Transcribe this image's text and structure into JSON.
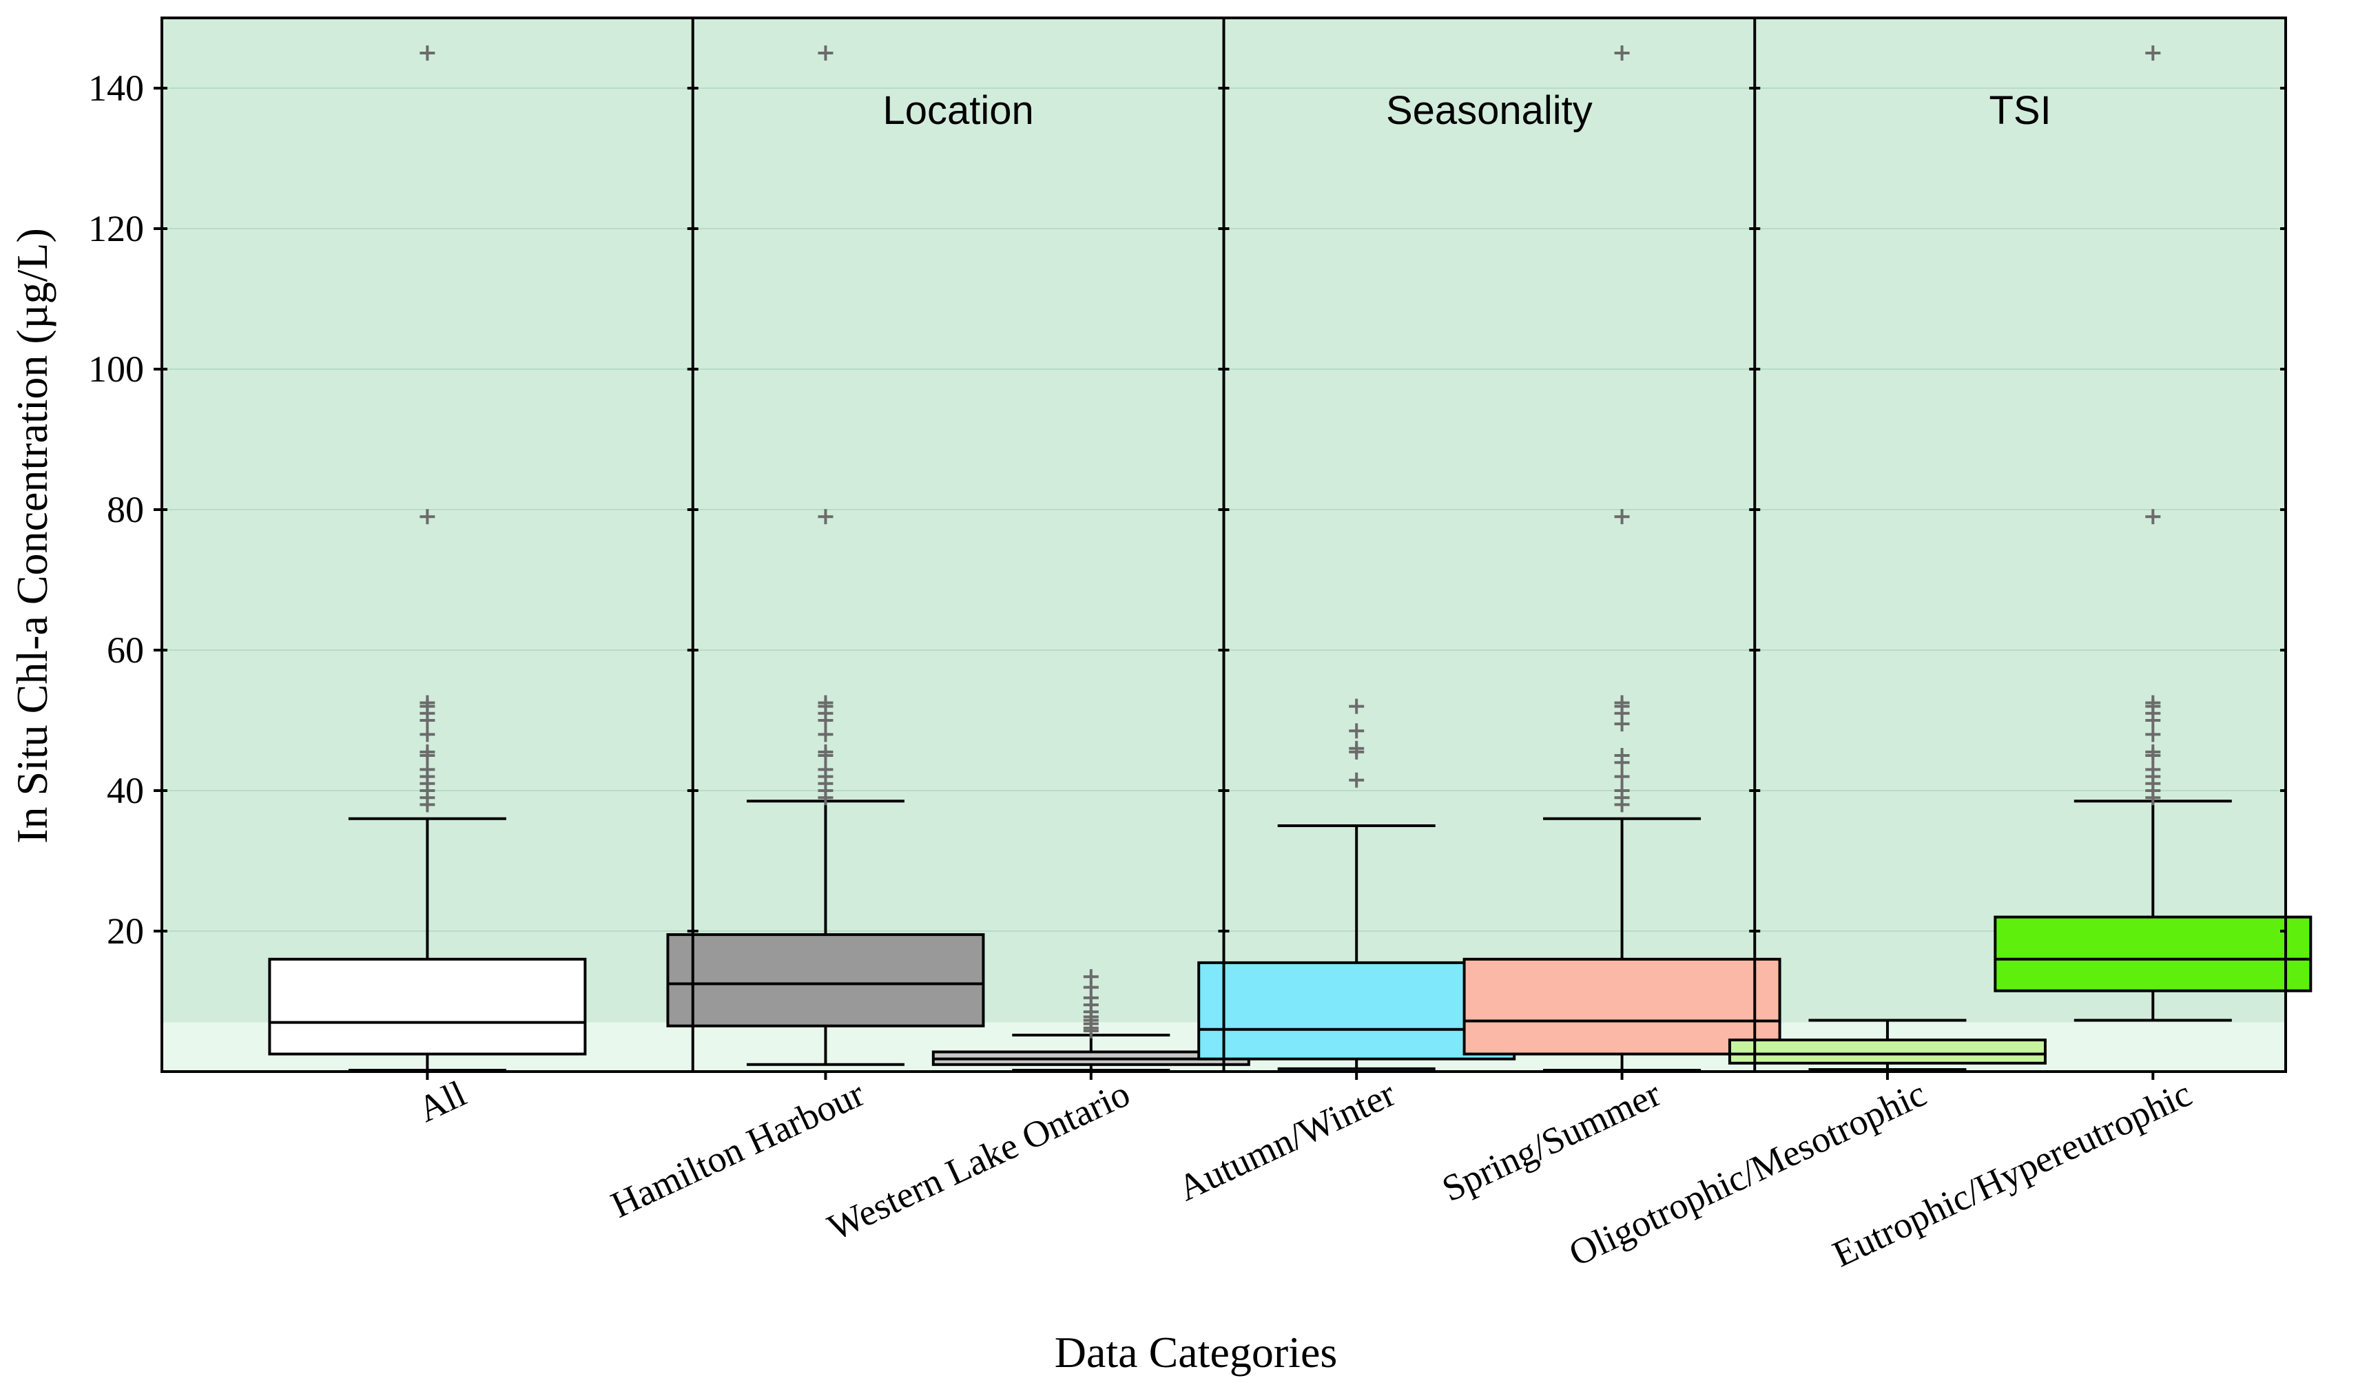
{
  "chart_data": {
    "type": "boxplot",
    "xlabel": "Data Categories",
    "ylabel": "In Situ Chl-a Concentration (µg/L)",
    "ylim": [
      0,
      150
    ],
    "yticks": [
      20,
      40,
      60,
      80,
      100,
      120,
      140
    ],
    "threshold": 7,
    "colors": {
      "background_above_threshold": "#d2ecdc",
      "background_below_threshold": "#e9f8ed",
      "gridline": "#b8dcc4",
      "outlier": "#6b6b6b"
    },
    "panels": [
      {
        "title": "",
        "categories": [
          "All"
        ]
      },
      {
        "title": "Location",
        "categories": [
          "Hamilton Harbour",
          "Western Lake Ontario"
        ]
      },
      {
        "title": "Seasonality",
        "categories": [
          "Autumn/Winter",
          "Spring/Summer"
        ]
      },
      {
        "title": "TSI",
        "categories": [
          "Oligotrophic/Mesotrophic",
          "Eutrophic/Hypereutrophic"
        ]
      }
    ],
    "boxes": [
      {
        "category": "All",
        "whisker_low": 0.2,
        "q1": 2.5,
        "median": 7.0,
        "q3": 16.0,
        "whisker_high": 36.0,
        "color": "#ffffff",
        "outliers": [
          38,
          39,
          40,
          41,
          42,
          43,
          45,
          45.5,
          48,
          50,
          51,
          52,
          52.5,
          79,
          145
        ]
      },
      {
        "category": "Hamilton Harbour",
        "whisker_low": 1.0,
        "q1": 6.5,
        "median": 12.5,
        "q3": 19.5,
        "whisker_high": 38.5,
        "color": "#999999",
        "outliers": [
          39,
          40,
          41,
          42,
          43,
          45,
          45.5,
          48,
          50,
          51,
          52,
          52.5,
          79,
          145
        ]
      },
      {
        "category": "Western Lake Ontario",
        "whisker_low": 0.2,
        "q1": 1.0,
        "median": 1.8,
        "q3": 2.8,
        "whisker_high": 5.2,
        "color": "#c8c8c8",
        "outliers": [
          5.8,
          6.2,
          6.8,
          7.3,
          7.8,
          8.5,
          9.5,
          10.5,
          12.0,
          13.5
        ]
      },
      {
        "category": "Autumn/Winter",
        "whisker_low": 0.4,
        "q1": 1.8,
        "median": 6.0,
        "q3": 15.5,
        "whisker_high": 35.0,
        "color": "#7fe8fa",
        "outliers": [
          41.5,
          45.5,
          46,
          48.5,
          52
        ]
      },
      {
        "category": "Spring/Summer",
        "whisker_low": 0.2,
        "q1": 2.5,
        "median": 7.2,
        "q3": 16.0,
        "whisker_high": 36.0,
        "color": "#fcb8a6",
        "outliers": [
          38,
          39,
          40,
          42,
          44,
          45,
          49.5,
          51,
          52,
          52.5,
          79,
          145
        ]
      },
      {
        "category": "Oligotrophic/Mesotrophic",
        "whisker_low": 0.3,
        "q1": 1.2,
        "median": 2.5,
        "q3": 4.5,
        "whisker_high": 7.3,
        "color": "#c7f59f",
        "outliers": []
      },
      {
        "category": "Eutrophic/Hypereutrophic",
        "whisker_low": 7.3,
        "q1": 11.5,
        "median": 16.0,
        "q3": 22.0,
        "whisker_high": 38.5,
        "color": "#5ef00c",
        "outliers": [
          39,
          40,
          41,
          42,
          43,
          45,
          45.5,
          48,
          50,
          51,
          52,
          52.5,
          79,
          145
        ]
      }
    ]
  }
}
